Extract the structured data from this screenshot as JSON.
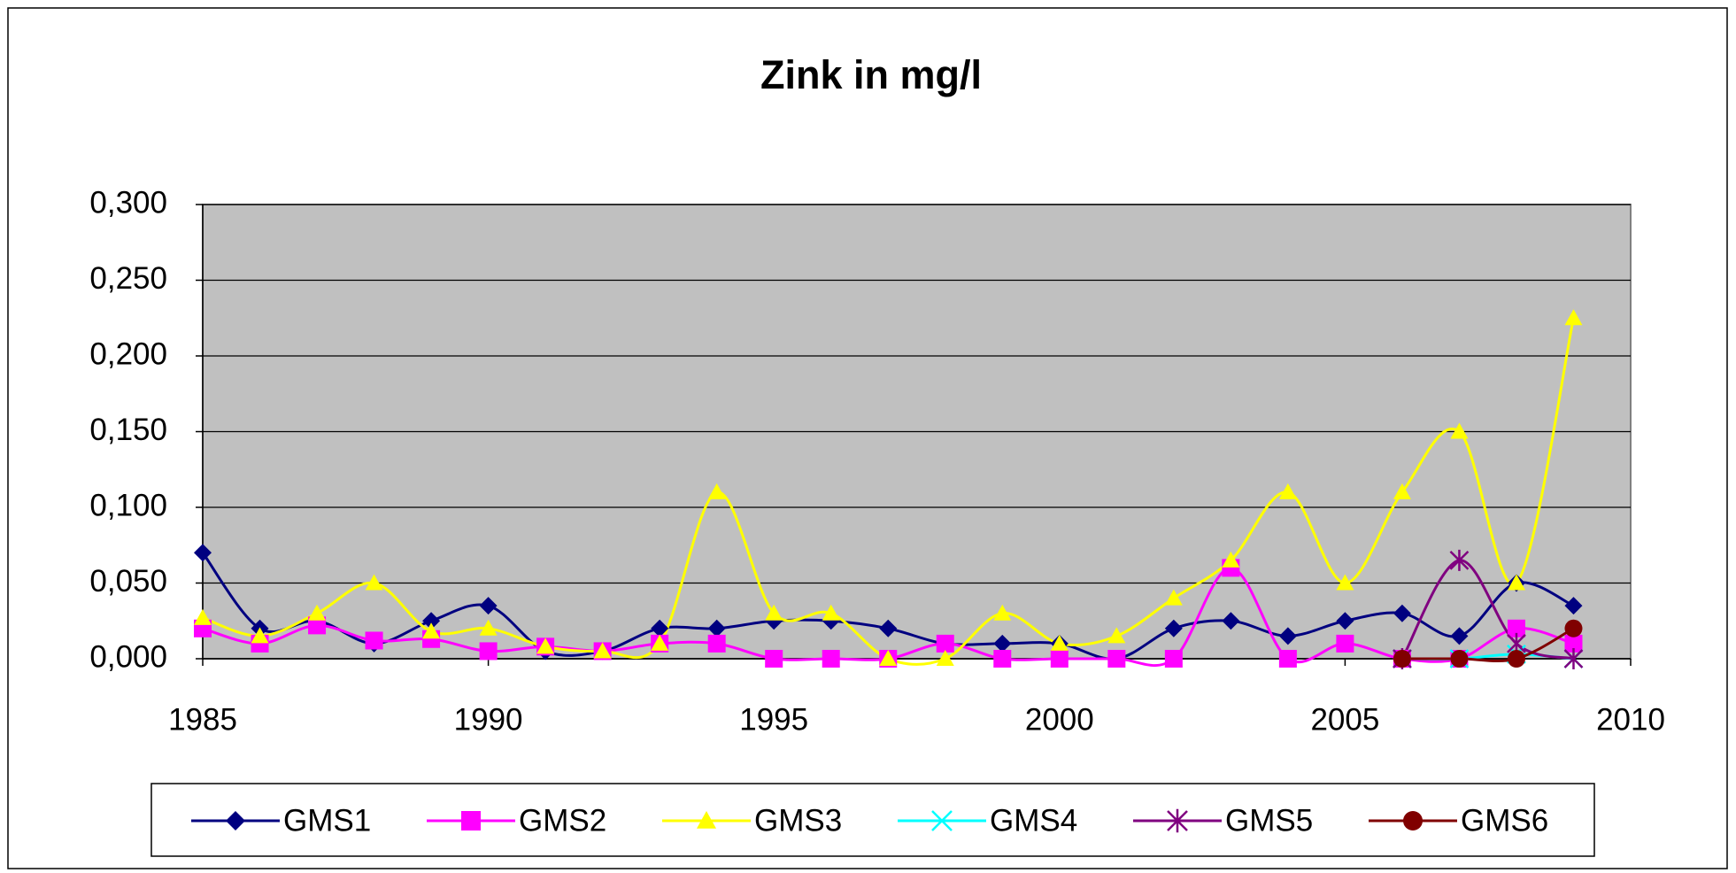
{
  "chart_data": {
    "type": "line",
    "title": "Zink in mg/l",
    "x": [
      1985,
      1986,
      1987,
      1988,
      1989,
      1990,
      1991,
      1992,
      1993,
      1994,
      1995,
      1996,
      1997,
      1998,
      1999,
      2000,
      2001,
      2002,
      2003,
      2004,
      2005,
      2006,
      2007,
      2008,
      2009
    ],
    "series": [
      {
        "name": "GMS1",
        "color": "#000080",
        "marker": "diamond",
        "values": [
          0.07,
          0.02,
          0.025,
          0.01,
          0.025,
          0.035,
          0.005,
          0.005,
          0.02,
          0.02,
          0.025,
          0.025,
          0.02,
          0.01,
          0.01,
          0.01,
          0,
          0.02,
          0.025,
          0.015,
          0.025,
          0.03,
          0.015,
          0.05,
          0.035
        ]
      },
      {
        "name": "GMS2",
        "color": "#ff00ff",
        "marker": "square",
        "values": [
          0.02,
          0.01,
          0.022,
          0.012,
          0.013,
          0.005,
          0.008,
          0.005,
          0.01,
          0.01,
          0,
          0,
          0,
          0.01,
          0,
          0,
          0,
          0,
          0.06,
          0,
          0.01,
          0,
          0,
          0.02,
          0.01
        ]
      },
      {
        "name": "GMS3",
        "color": "#ffff00",
        "marker": "triangle",
        "values": [
          0.027,
          0.015,
          0.03,
          0.05,
          0.018,
          0.02,
          0.008,
          0.005,
          0.01,
          0.11,
          0.03,
          0.03,
          0,
          0,
          0.03,
          0.01,
          0.015,
          0.04,
          0.065,
          0.11,
          0.05,
          0.11,
          0.15,
          0.05,
          0.225
        ]
      },
      {
        "name": "GMS4",
        "color": "#00ffff",
        "marker": "x",
        "values": [
          null,
          null,
          null,
          null,
          null,
          null,
          null,
          null,
          null,
          null,
          null,
          null,
          null,
          null,
          null,
          null,
          null,
          null,
          null,
          null,
          null,
          0,
          0,
          0.003,
          0
        ]
      },
      {
        "name": "GMS5",
        "color": "#800080",
        "marker": "star",
        "values": [
          null,
          null,
          null,
          null,
          null,
          null,
          null,
          null,
          null,
          null,
          null,
          null,
          null,
          null,
          null,
          null,
          null,
          null,
          null,
          null,
          null,
          0,
          0.065,
          0.01,
          0
        ]
      },
      {
        "name": "GMS6",
        "color": "#800000",
        "marker": "circle",
        "values": [
          null,
          null,
          null,
          null,
          null,
          null,
          null,
          null,
          null,
          null,
          null,
          null,
          null,
          null,
          null,
          null,
          null,
          null,
          null,
          null,
          null,
          0,
          0,
          0,
          0.02
        ]
      }
    ],
    "xlim": [
      1985,
      2010
    ],
    "xticks": [
      1985,
      1990,
      1995,
      2000,
      2005,
      2010
    ],
    "ylim": [
      0,
      0.3
    ],
    "yticks": [
      {
        "value": 0,
        "label": "0,000"
      },
      {
        "value": 0.05,
        "label": "0,050"
      },
      {
        "value": 0.1,
        "label": "0,100"
      },
      {
        "value": 0.15,
        "label": "0,150"
      },
      {
        "value": 0.2,
        "label": "0,200"
      },
      {
        "value": 0.25,
        "label": "0,250"
      },
      {
        "value": 0.3,
        "label": "0,300"
      }
    ],
    "grid": true,
    "legend": "bottom",
    "plot_background": "#c0c0c0"
  }
}
